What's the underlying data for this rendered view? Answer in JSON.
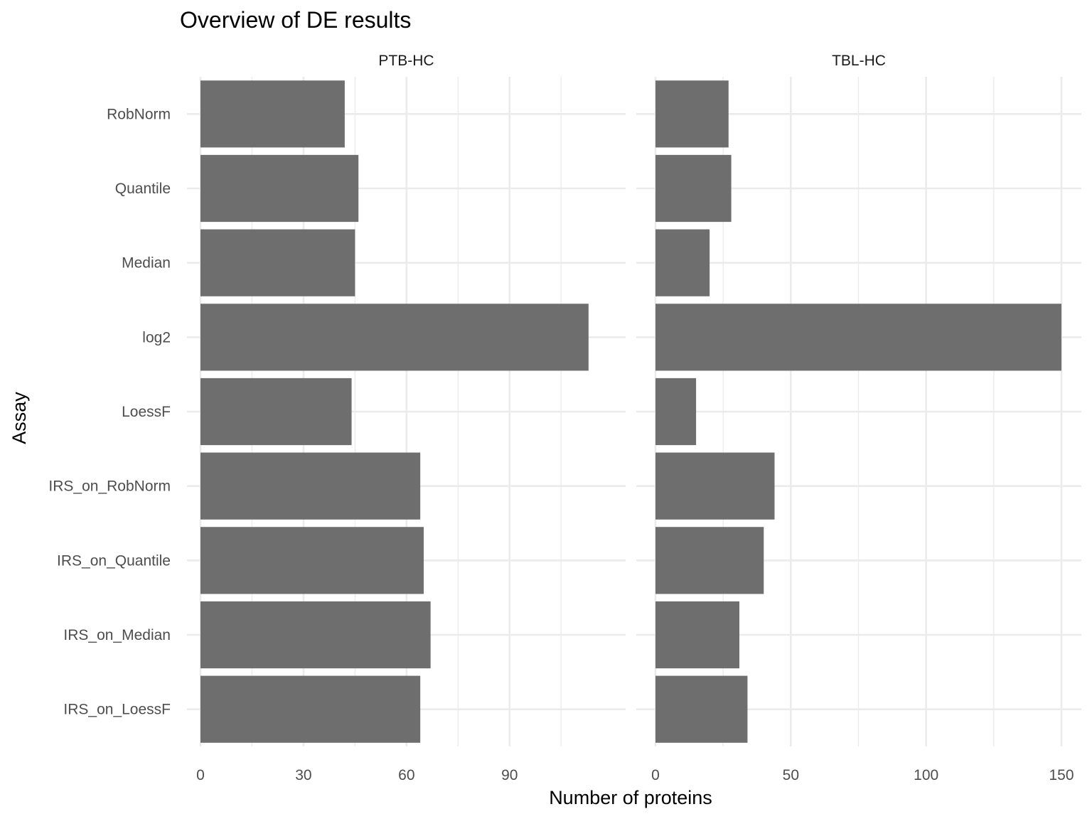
{
  "chart_data": {
    "type": "bar",
    "orientation": "horizontal",
    "title": "Overview of DE results",
    "xlabel": "Number of proteins",
    "ylabel": "Assay",
    "categories": [
      "RobNorm",
      "Quantile",
      "Median",
      "log2",
      "LoessF",
      "IRS_on_RobNorm",
      "IRS_on_Quantile",
      "IRS_on_Median",
      "IRS_on_LoessF"
    ],
    "grid": true,
    "legend": "none",
    "bar_color": "#6e6e6e",
    "panels": [
      {
        "label": "PTB-HC",
        "values": [
          42,
          46,
          45,
          113,
          44,
          64,
          65,
          67,
          64
        ],
        "xlim": [
          0,
          118
        ],
        "xticks": [
          0,
          30,
          60,
          90
        ],
        "xtick_labels": [
          "0",
          "30",
          "60",
          "90"
        ]
      },
      {
        "label": "TBL-HC",
        "values": [
          27,
          28,
          20,
          150,
          15,
          44,
          40,
          31,
          34
        ],
        "xlim": [
          0,
          150
        ],
        "xticks": [
          0,
          50,
          100,
          150
        ],
        "xtick_labels": [
          "0",
          "50",
          "100",
          "150"
        ]
      }
    ]
  }
}
